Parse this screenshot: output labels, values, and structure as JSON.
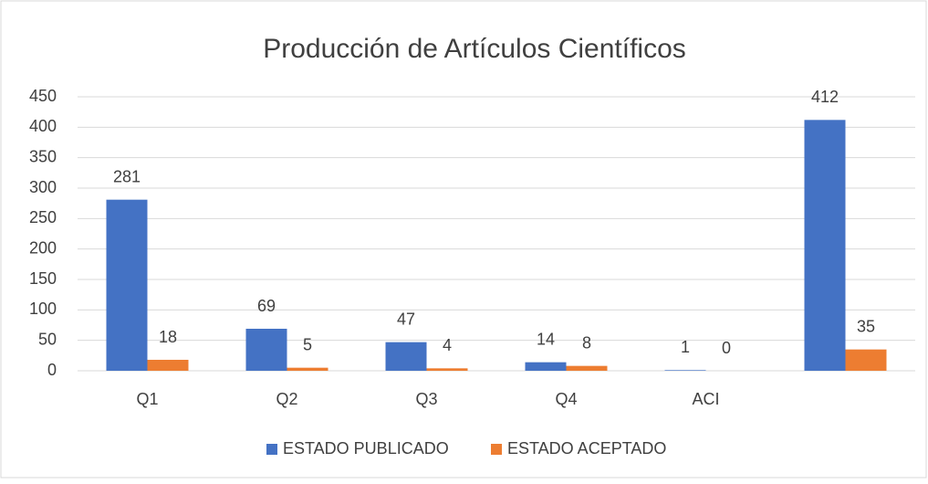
{
  "chart_data": {
    "type": "bar",
    "title": "Producción de Artículos Científicos",
    "categories": [
      "Q1",
      "Q2",
      "Q3",
      "Q4",
      "ACI",
      null
    ],
    "series": [
      {
        "name": "ESTADO PUBLICADO",
        "color": "#4472c4",
        "values": [
          281,
          69,
          47,
          14,
          1,
          412
        ]
      },
      {
        "name": "ESTADO ACEPTADO",
        "color": "#ed7d31",
        "values": [
          18,
          5,
          4,
          8,
          0,
          35
        ]
      }
    ],
    "ylim": [
      0,
      450
    ],
    "yticks": [
      0,
      50,
      100,
      150,
      200,
      250,
      300,
      350,
      400,
      450
    ],
    "grid": true,
    "legend": "bottom"
  }
}
